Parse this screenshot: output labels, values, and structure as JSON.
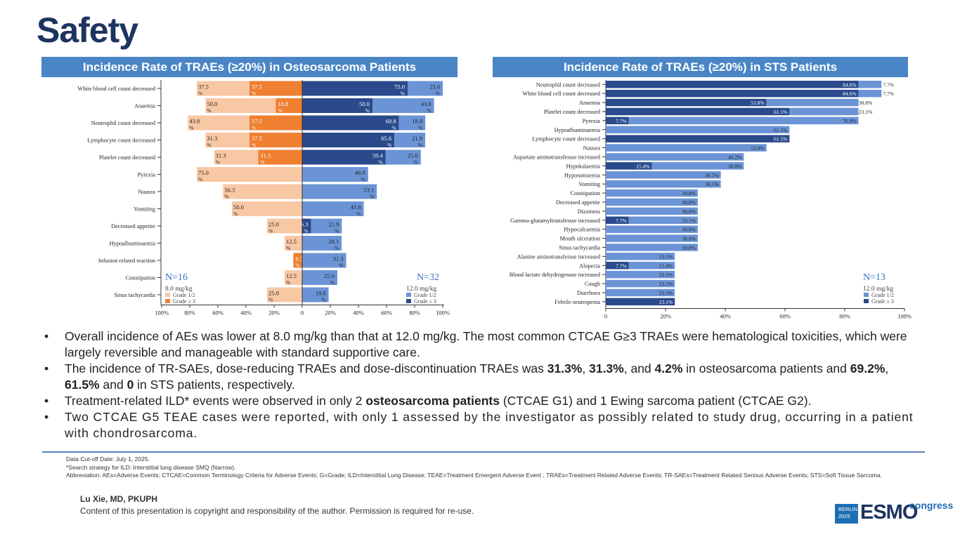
{
  "slide": {
    "title": "Safety"
  },
  "panels": [
    {
      "header": "Incidence Rate of TRAEs (≥20%) in Osteosarcoma Patients"
    },
    {
      "header": "Incidence Rate of TRAEs (≥20%) in STS Patients"
    }
  ],
  "chart_data": [
    {
      "type": "bar",
      "orientation": "horizontal-diverging",
      "title": "Incidence Rate of TRAEs (≥20%) in Osteosarcoma Patients",
      "xlabel": "",
      "ylabel": "",
      "x_ticks": [
        "100%",
        "80%",
        "60%",
        "40%",
        "20%",
        "0",
        "20%",
        "40%",
        "60%",
        "80%",
        "100%"
      ],
      "xlim": [
        -100,
        100
      ],
      "categories": [
        "White blood cell count decreased",
        "Anaemia",
        "Neutrophil count decreased",
        "Lymphocyte count decreased",
        "Platelet count decreased",
        "Pyrexia",
        "Nausea",
        "Vomiting",
        "Decreased appetite",
        "Hypoalbuminaemia",
        "Infusion related reaction",
        "Constipation",
        "Sinus tachycardia"
      ],
      "left_group": {
        "n_label": "N=16",
        "dose_label": "8.0 mg/kg",
        "series": [
          {
            "name": "Grade 1/2",
            "color": "#f8c7a4",
            "values": [
              37.5,
              50.0,
              43.8,
              31.3,
              31.3,
              75.0,
              56.3,
              50.0,
              25.0,
              12.5,
              0,
              12.5,
              25.0
            ]
          },
          {
            "name": "Grade ≥ 3",
            "color": "#ef7f31",
            "values": [
              37.5,
              18.8,
              37.5,
              37.5,
              31.3,
              0,
              0,
              0,
              0,
              0,
              6.3,
              0,
              0
            ]
          }
        ]
      },
      "right_group": {
        "n_label": "N=32",
        "dose_label": "12.0 mg/kg",
        "series": [
          {
            "name": "Grade 1/2",
            "color": "#6b94d6",
            "values": [
              25.0,
              43.8,
              18.8,
              21.9,
              25.0,
              46.9,
              53.1,
              43.8,
              21.9,
              28.1,
              31.3,
              25.0,
              18.8
            ]
          },
          {
            "name": "Grade ≥ 3",
            "color": "#2a4a8c",
            "values": [
              75.0,
              50.0,
              68.8,
              65.6,
              59.4,
              0,
              0,
              0,
              6.3,
              0,
              0,
              0,
              0
            ]
          }
        ]
      }
    },
    {
      "type": "bar",
      "orientation": "horizontal-stacked",
      "title": "Incidence Rate of TRAEs (≥20%) in STS Patients",
      "xlabel": "",
      "ylabel": "",
      "x_ticks": [
        "0",
        "20%",
        "40%",
        "60%",
        "80%",
        "100%"
      ],
      "xlim": [
        0,
        100
      ],
      "n_label": "N=13",
      "dose_label": "12.0 mg/kg",
      "categories": [
        "Neutrophil count decreased",
        "White blood cell count decreased",
        "Anaemia",
        "Platelet count decreased",
        "Pyrexia",
        "Hypoalbuminaemia",
        "Lymphocyte count decreased",
        "Nausea",
        "Aspartate aminotransferase increased",
        "Hypokalaemia",
        "Hyponatraemia",
        "Vomiting",
        "Constipation",
        "Decreased appetite",
        "Dizziness",
        "Gamma-glutamyltransferase increased",
        "Hypocalcaemia",
        "Mouth ulceration",
        "Sinus tachycardia",
        "Alanine aminotransferase increased",
        "Alopecia",
        "Blood lactate dehydrogenase increased",
        "Cough",
        "Diarrhoea",
        "Febrile neutropenia"
      ],
      "series": [
        {
          "name": "Grade ≥ 3",
          "color": "#2a4a8c",
          "values": [
            84.6,
            84.6,
            53.8,
            61.5,
            7.7,
            0,
            61.5,
            0,
            0,
            15.4,
            0,
            0,
            0,
            0,
            0,
            7.7,
            0,
            0,
            0,
            0,
            7.7,
            0,
            0,
            0,
            23.1
          ]
        },
        {
          "name": "Grade 1/2",
          "color": "#6b94d6",
          "values": [
            7.7,
            7.7,
            30.8,
            23.1,
            76.9,
            61.5,
            0,
            53.8,
            46.2,
            30.8,
            38.5,
            38.5,
            30.8,
            30.8,
            30.8,
            23.1,
            30.8,
            30.8,
            30.8,
            23.1,
            15.4,
            23.1,
            23.1,
            23.1,
            0
          ]
        }
      ]
    }
  ],
  "bullets": [
    {
      "parts": [
        {
          "t": "Overall incidence of AEs was lower at 8.0 mg/kg than that at 12.0 mg/kg. The most common CTCAE G≥3 TRAEs were hematological toxicities, which were largely reversible and manageable with standard supportive care."
        }
      ]
    },
    {
      "parts": [
        {
          "t": "The incidence of TR-SAEs, dose-reducing TRAEs and dose-discontinuation TRAEs was "
        },
        {
          "t": "31.3%",
          "b": true
        },
        {
          "t": ", "
        },
        {
          "t": "31.3%",
          "b": true
        },
        {
          "t": ", and "
        },
        {
          "t": "4.2%",
          "b": true
        },
        {
          "t": " in osteosarcoma patients and "
        },
        {
          "t": "69.2%",
          "b": true
        },
        {
          "t": ", "
        },
        {
          "t": "61.5%",
          "b": true
        },
        {
          "t": " and "
        },
        {
          "t": "0",
          "b": true
        },
        {
          "t": " in STS patients, respectively."
        }
      ]
    },
    {
      "parts": [
        {
          "t": "Treatment-related ILD* events were observed in only 2 "
        },
        {
          "t": "osteosarcoma patients",
          "b": true
        },
        {
          "t": " (CTCAE G1) and 1 Ewing sarcoma patient (CTCAE G2)."
        }
      ]
    },
    {
      "parts": [
        {
          "t": "Two CTCAE G5 TEAE cases were reported, with only 1 assessed by the investigator as possibly related to study drug, occurring in a patient with chondrosarcoma."
        }
      ]
    }
  ],
  "footnotes": {
    "cutoff": "Data Cut-off Date: July 1, 2025.",
    "ild_note": "*Search strategy for ILD: Interstitial lung disease SMQ (Narrow).",
    "abbrev": "Abbreviation: AEs=Adverse Events; CTCAE=Common Terminology Criteria for Adverse Events; G=Grade; ILD=Interstitial Lung Disease; TEAE=Treatment Emergent Adverse Event ; TRAEs=Treatment Related Adverse Events; TR-SAEs=Treatment Related Serious Adverse Events; STS=Soft Tissue Sarcoma."
  },
  "author": "Lu Xie, MD, PKUPH",
  "copyright": "Content of this presentation is copyright and responsibility of the author. Permission is required for re-use.",
  "logo": {
    "city": "BERLIN",
    "year": "2025",
    "brand": "ESMO",
    "suffix": "congress"
  }
}
